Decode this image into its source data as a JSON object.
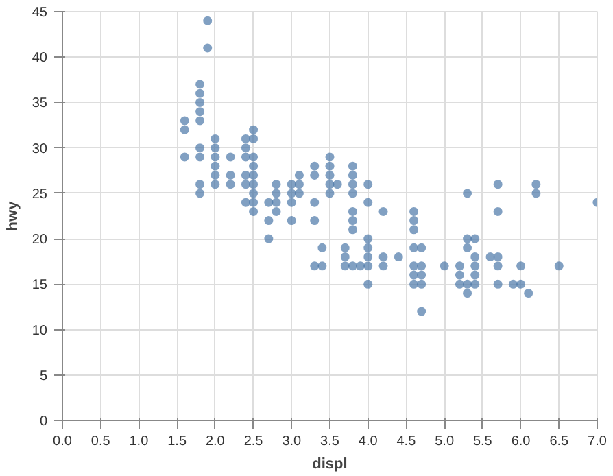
{
  "chart_data": {
    "type": "scatter",
    "xlabel": "displ",
    "ylabel": "hwy",
    "xlim": [
      0,
      7
    ],
    "ylim": [
      0,
      45
    ],
    "xticks": [
      {
        "value": 0,
        "label": "0.0"
      },
      {
        "value": 0.5,
        "label": "0.5"
      },
      {
        "value": 1,
        "label": "1.0"
      },
      {
        "value": 1.5,
        "label": "1.5"
      },
      {
        "value": 2,
        "label": "2.0"
      },
      {
        "value": 2.5,
        "label": "2.5"
      },
      {
        "value": 3,
        "label": "3.0"
      },
      {
        "value": 3.5,
        "label": "3.5"
      },
      {
        "value": 4,
        "label": "4.0"
      },
      {
        "value": 4.5,
        "label": "4.5"
      },
      {
        "value": 5,
        "label": "5.0"
      },
      {
        "value": 5.5,
        "label": "5.5"
      },
      {
        "value": 6,
        "label": "6.0"
      },
      {
        "value": 6.5,
        "label": "6.5"
      },
      {
        "value": 7,
        "label": "7.0"
      }
    ],
    "yticks": [
      0,
      5,
      10,
      15,
      20,
      25,
      30,
      35,
      40,
      45
    ],
    "grid": true,
    "marker": "circle",
    "series": [
      {
        "color": "#4c78a8",
        "x": [
          1.6,
          1.6,
          1.6,
          1.8,
          1.8,
          1.8,
          1.8,
          1.8,
          1.8,
          1.8,
          1.8,
          1.8,
          1.9,
          1.9,
          2.0,
          2.0,
          2.0,
          2.0,
          2.0,
          2.0,
          2.2,
          2.2,
          2.2,
          2.4,
          2.4,
          2.4,
          2.4,
          2.4,
          2.4,
          2.5,
          2.5,
          2.5,
          2.5,
          2.5,
          2.5,
          2.5,
          2.5,
          2.5,
          2.7,
          2.7,
          2.7,
          2.8,
          2.8,
          2.8,
          2.8,
          3.0,
          3.0,
          3.0,
          3.0,
          3.1,
          3.1,
          3.1,
          3.3,
          3.3,
          3.3,
          3.3,
          3.3,
          3.4,
          3.4,
          3.5,
          3.5,
          3.5,
          3.5,
          3.5,
          3.6,
          3.7,
          3.7,
          3.7,
          3.8,
          3.8,
          3.8,
          3.8,
          3.8,
          3.8,
          3.8,
          3.8,
          3.9,
          4.0,
          4.0,
          4.0,
          4.0,
          4.0,
          4.0,
          4.0,
          4.2,
          4.2,
          4.2,
          4.4,
          4.6,
          4.6,
          4.6,
          4.6,
          4.6,
          4.6,
          4.6,
          4.7,
          4.7,
          4.7,
          4.7,
          4.7,
          5.0,
          5.2,
          5.2,
          5.2,
          5.3,
          5.3,
          5.3,
          5.3,
          5.3,
          5.4,
          5.4,
          5.4,
          5.4,
          5.4,
          5.6,
          5.7,
          5.7,
          5.7,
          5.7,
          5.7,
          5.9,
          6.0,
          6.0,
          6.1,
          6.2,
          6.2,
          6.5,
          7.0
        ],
        "values": [
          33,
          32,
          29,
          37,
          36,
          35,
          34,
          33,
          30,
          29,
          26,
          25,
          44,
          41,
          31,
          30,
          29,
          28,
          27,
          26,
          29,
          27,
          26,
          31,
          30,
          29,
          27,
          26,
          24,
          32,
          31,
          29,
          28,
          27,
          26,
          25,
          24,
          23,
          24,
          22,
          20,
          26,
          25,
          24,
          23,
          26,
          25,
          24,
          22,
          27,
          26,
          25,
          28,
          27,
          24,
          22,
          17,
          19,
          17,
          29,
          28,
          27,
          26,
          25,
          26,
          19,
          18,
          17,
          28,
          27,
          26,
          25,
          23,
          22,
          21,
          17,
          17,
          26,
          24,
          20,
          19,
          18,
          17,
          15,
          23,
          18,
          17,
          18,
          23,
          22,
          21,
          19,
          17,
          16,
          15,
          19,
          17,
          16,
          15,
          12,
          17,
          17,
          16,
          15,
          25,
          20,
          19,
          15,
          14,
          20,
          18,
          17,
          16,
          15,
          18,
          26,
          23,
          18,
          17,
          15,
          15,
          17,
          15,
          14,
          26,
          25,
          17,
          24
        ]
      }
    ]
  }
}
